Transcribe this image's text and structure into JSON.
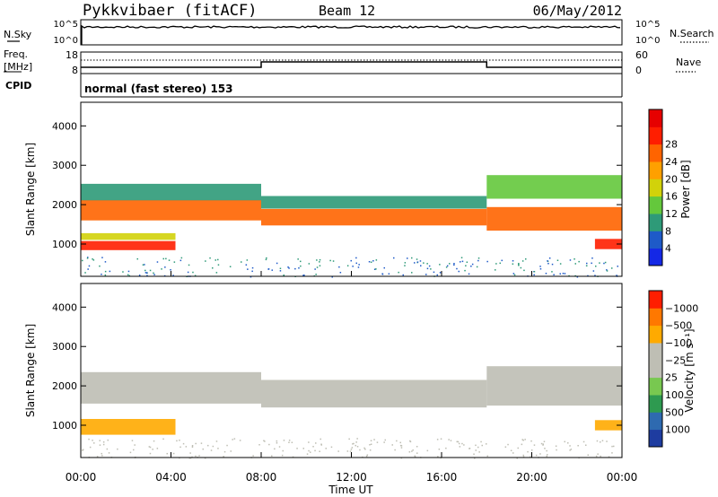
{
  "header": {
    "station": "Pykkvibaer (fitACF)",
    "beam": "Beam 12",
    "date": "06/May/2012"
  },
  "strip_nsky": {
    "left_label": "N.Sky",
    "right_label": "N.Search",
    "left_ticks": [
      "10^5",
      "10^0"
    ],
    "right_ticks": [
      "10^5",
      "10^0"
    ]
  },
  "strip_freq": {
    "left_label_1": "Freq.",
    "left_label_2": "[MHz]",
    "right_label": "Nave",
    "left_ticks": [
      "18",
      "8"
    ],
    "right_ticks": [
      "60",
      "0"
    ]
  },
  "strip_cpid": {
    "left_label": "CPID",
    "mode_text": "normal (fast stereo) 153"
  },
  "chart_data": [
    {
      "type": "heatmap",
      "quantity": "Power",
      "ylabel": "Slant Range [km]",
      "ylim": [
        180,
        4600
      ],
      "yticks": [
        "1000",
        "2000",
        "3000",
        "4000"
      ],
      "xlim_hours": [
        0,
        24
      ],
      "colorbar_label": "Power [dB]",
      "colorbar_ticks": [
        "4",
        "8",
        "12",
        "16",
        "20",
        "24",
        "28"
      ],
      "colorbar_colors": [
        "#1428e6",
        "#1e5ac8",
        "#2e9a78",
        "#64c83c",
        "#d2d20a",
        "#ffa000",
        "#ff6400",
        "#ff1e00",
        "#e60000"
      ],
      "bands": [
        {
          "t0": 0.0,
          "t1": 4.2,
          "center_km": 960,
          "width_km": 230,
          "db": 28
        },
        {
          "t0": 0.0,
          "t1": 4.2,
          "center_km": 1190,
          "width_km": 170,
          "db": 16
        },
        {
          "t0": 0.0,
          "t1": 8.0,
          "center_km": 1860,
          "width_km": 520,
          "db": 24
        },
        {
          "t0": 0.0,
          "t1": 8.0,
          "center_km": 2320,
          "width_km": 420,
          "db": 8
        },
        {
          "t0": 8.0,
          "t1": 18.0,
          "center_km": 1680,
          "width_km": 420,
          "db": 22
        },
        {
          "t0": 8.0,
          "t1": 18.0,
          "center_km": 2060,
          "width_km": 320,
          "db": 8
        },
        {
          "t0": 18.0,
          "t1": 24.0,
          "center_km": 1640,
          "width_km": 600,
          "db": 22
        },
        {
          "t0": 18.0,
          "t1": 24.0,
          "center_km": 2450,
          "width_km": 600,
          "db": 10
        },
        {
          "t0": 22.8,
          "t1": 24.0,
          "center_km": 1000,
          "width_km": 260,
          "db": 26
        }
      ]
    },
    {
      "type": "heatmap",
      "quantity": "Velocity",
      "ylabel": "Slant Range [km]",
      "ylim": [
        180,
        4600
      ],
      "yticks": [
        "1000",
        "2000",
        "3000",
        "4000"
      ],
      "xlim_hours": [
        0,
        24
      ],
      "xticks": [
        "00:00",
        "04:00",
        "08:00",
        "12:00",
        "16:00",
        "20:00",
        "00:00"
      ],
      "xlabel": "Time UT",
      "colorbar_label": "Velocity [m s⁻¹]",
      "colorbar_ticks": [
        "1000",
        "500",
        "100",
        "25",
        "−25",
        "−100",
        "−500",
        "−1000"
      ],
      "colorbar_colors": [
        "#1e3ca0",
        "#2e6ab0",
        "#2e9a50",
        "#78c850",
        "#bebeb4",
        "#bebeb4",
        "#ffaa00",
        "#ff7800",
        "#ff1e00"
      ],
      "bands": [
        {
          "t0": 0.0,
          "t1": 4.2,
          "center_km": 960,
          "width_km": 400,
          "vel": -300
        },
        {
          "t0": 0.0,
          "t1": 8.0,
          "center_km": 1950,
          "width_km": 800,
          "vel": 0
        },
        {
          "t0": 8.0,
          "t1": 18.0,
          "center_km": 1800,
          "width_km": 700,
          "vel": 0
        },
        {
          "t0": 18.0,
          "t1": 24.0,
          "center_km": 2000,
          "width_km": 1000,
          "vel": 0
        },
        {
          "t0": 22.8,
          "t1": 24.0,
          "center_km": 1000,
          "width_km": 260,
          "vel": -400
        }
      ]
    }
  ]
}
